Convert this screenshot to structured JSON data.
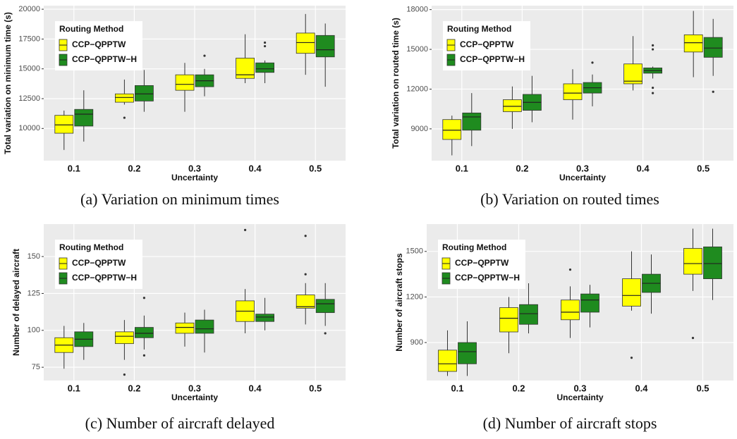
{
  "chart_data": [
    {
      "type": "box",
      "caption": "(a) Variation on minimum times",
      "x_label": "Uncertainty",
      "y_label": "Total variation on minimum time (s)",
      "legend_title": "Routing Method",
      "legend_position": "top-left",
      "grid": true,
      "categories": [
        "0.1",
        "0.2",
        "0.3",
        "0.4",
        "0.5"
      ],
      "ylim": [
        7300,
        20300
      ],
      "yticks": [
        10000,
        12500,
        15000,
        17500,
        20000
      ],
      "series": [
        {
          "name": "CCP−QPPTW",
          "color": "#ffff00",
          "min": [
            8200,
            12000,
            11400,
            13800,
            14500
          ],
          "q1": [
            9600,
            12200,
            13200,
            14200,
            16300
          ],
          "median": [
            10300,
            12600,
            13700,
            14500,
            17200
          ],
          "q3": [
            11100,
            12900,
            14500,
            15900,
            18000
          ],
          "max": [
            11500,
            14100,
            15500,
            17900,
            19600
          ],
          "outliers": [
            [],
            [
              10900
            ],
            [],
            [],
            []
          ]
        },
        {
          "name": "CCP−QPPTW−H",
          "color": "#1f8b1f",
          "min": [
            8900,
            11400,
            12700,
            13800,
            13500
          ],
          "q1": [
            10200,
            12300,
            13500,
            14700,
            16000
          ],
          "median": [
            11200,
            12900,
            14000,
            15000,
            16600
          ],
          "q3": [
            11600,
            13600,
            14500,
            15500,
            17800
          ],
          "max": [
            13200,
            14900,
            15000,
            15700,
            18800
          ],
          "outliers": [
            [],
            [],
            [
              16100
            ],
            [
              16900,
              17200
            ],
            []
          ]
        }
      ]
    },
    {
      "type": "box",
      "caption": "(b) Variation on routed times",
      "x_label": "Uncertainty",
      "y_label": "Total variation on routed time (s)",
      "legend_title": "Routing Method",
      "legend_position": "top-left",
      "grid": true,
      "categories": [
        "0.1",
        "0.2",
        "0.3",
        "0.4",
        "0.5"
      ],
      "ylim": [
        6600,
        18300
      ],
      "yticks": [
        9000,
        12000,
        15000,
        18000
      ],
      "series": [
        {
          "name": "CCP−QPPTW",
          "color": "#ffff00",
          "min": [
            7000,
            9000,
            9700,
            11900,
            12900
          ],
          "q1": [
            8200,
            10300,
            11200,
            12400,
            14800
          ],
          "median": [
            8900,
            10700,
            11700,
            12600,
            15500
          ],
          "q3": [
            9700,
            11200,
            12400,
            13900,
            16100
          ],
          "max": [
            10000,
            12200,
            13500,
            16000,
            17900
          ],
          "outliers": [
            [],
            [],
            [],
            [],
            []
          ]
        },
        {
          "name": "CCP−QPPTW−H",
          "color": "#1f8b1f",
          "min": [
            7700,
            9500,
            10700,
            12800,
            13000
          ],
          "q1": [
            8900,
            10400,
            11700,
            13200,
            14400
          ],
          "median": [
            9900,
            11000,
            12100,
            13400,
            15100
          ],
          "q3": [
            10200,
            11600,
            12500,
            13600,
            15900
          ],
          "max": [
            11700,
            13000,
            13100,
            13700,
            17300
          ],
          "outliers": [
            [],
            [],
            [
              14000
            ],
            [
              15300,
              15000,
              12100,
              11700
            ],
            [
              11800
            ]
          ]
        }
      ]
    },
    {
      "type": "box",
      "caption": "(c) Number of aircraft delayed",
      "x_label": "Uncertainty",
      "y_label": "Number of delayed aircraft",
      "legend_title": "Routing Method",
      "legend_position": "top-left",
      "grid": true,
      "categories": [
        "0.1",
        "0.2",
        "0.3",
        "0.4",
        "0.5"
      ],
      "ylim": [
        66,
        172
      ],
      "yticks": [
        75,
        100,
        125,
        150
      ],
      "series": [
        {
          "name": "CCP−QPPTW",
          "color": "#ffff00",
          "min": [
            74,
            80,
            89,
            98,
            104
          ],
          "q1": [
            85,
            91,
            98,
            106,
            115
          ],
          "median": [
            90,
            96,
            102,
            113,
            116
          ],
          "q3": [
            95,
            99,
            105,
            120,
            124
          ],
          "max": [
            103,
            107,
            112,
            128,
            132
          ],
          "outliers": [
            [],
            [
              70
            ],
            [],
            [
              168
            ],
            [
              138,
              164
            ]
          ]
        },
        {
          "name": "CCP−QPPTW−H",
          "color": "#1f8b1f",
          "min": [
            80,
            87,
            85,
            100,
            103
          ],
          "q1": [
            89,
            95,
            98,
            106,
            112
          ],
          "median": [
            94,
            98,
            101,
            109,
            118
          ],
          "q3": [
            99,
            102,
            107,
            111,
            121
          ],
          "max": [
            105,
            110,
            114,
            122,
            132
          ],
          "outliers": [
            [],
            [
              122,
              83
            ],
            [],
            [],
            [
              98
            ]
          ]
        }
      ]
    },
    {
      "type": "box",
      "caption": "(d) Number of aircraft stops",
      "x_label": "Uncertainty",
      "y_label": "Number of aircraft stops",
      "legend_title": "Routing Method",
      "legend_position": "top-left",
      "grid": true,
      "categories": [
        "0.1",
        "0.2",
        "0.3",
        "0.4",
        "0.5"
      ],
      "ylim": [
        650,
        1680
      ],
      "yticks": [
        900,
        1200,
        1500
      ],
      "series": [
        {
          "name": "CCP−QPPTW",
          "color": "#ffff00",
          "min": [
            680,
            830,
            930,
            1110,
            1240
          ],
          "q1": [
            710,
            970,
            1050,
            1140,
            1350
          ],
          "median": [
            760,
            1060,
            1100,
            1210,
            1420
          ],
          "q3": [
            850,
            1130,
            1180,
            1320,
            1520
          ],
          "max": [
            980,
            1200,
            1270,
            1500,
            1650
          ],
          "outliers": [
            [],
            [],
            [
              1380
            ],
            [
              800
            ],
            [
              930
            ]
          ]
        },
        {
          "name": "CCP−QPPTW−H",
          "color": "#1f8b1f",
          "min": [
            680,
            960,
            1000,
            1090,
            1180
          ],
          "q1": [
            760,
            1020,
            1100,
            1230,
            1320
          ],
          "median": [
            840,
            1090,
            1180,
            1290,
            1420
          ],
          "q3": [
            900,
            1150,
            1220,
            1350,
            1530
          ],
          "max": [
            1040,
            1290,
            1280,
            1480,
            1650
          ],
          "outliers": [
            [],
            [],
            [],
            [],
            []
          ]
        }
      ]
    }
  ]
}
